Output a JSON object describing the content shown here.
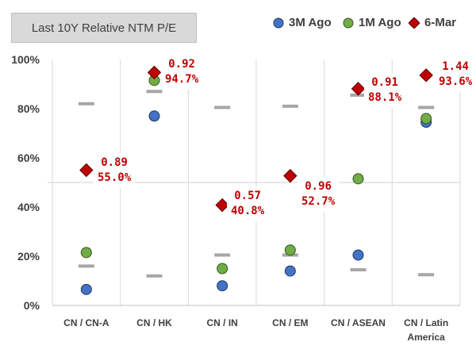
{
  "chart_data": {
    "type": "scatter",
    "title": "Last 10Y Relative NTM P/E",
    "categories": [
      "CN / CN-A",
      "CN / HK",
      "CN / IN",
      "CN / EM",
      "CN / ASEAN",
      "CN / Latin America"
    ],
    "yticks": [
      "0%",
      "20%",
      "40%",
      "60%",
      "80%",
      "100%"
    ],
    "ylim": [
      0,
      100
    ],
    "median_line": 50,
    "grid": false,
    "legend_position": "top-right",
    "series": [
      {
        "name": "3M Ago",
        "marker": "circle",
        "color": "#4472c4",
        "values": [
          6.5,
          77,
          8,
          14,
          20.5,
          74.5
        ]
      },
      {
        "name": "1M Ago",
        "marker": "circle",
        "color": "#70ad47",
        "values": [
          21.5,
          91.5,
          15,
          22.5,
          51.5,
          76
        ]
      },
      {
        "name": "6-Mar",
        "marker": "diamond",
        "color": "#c00000",
        "values": [
          55,
          94.7,
          40.8,
          52.7,
          88.1,
          93.6
        ]
      }
    ],
    "range_marks": {
      "color": "#a6a6a6",
      "upper": [
        82,
        87,
        80.5,
        81,
        85.5,
        80.5
      ],
      "lower": [
        16,
        12,
        20.5,
        20.5,
        14.5,
        12.5
      ]
    },
    "annotations": [
      {
        "line1": "0.89",
        "line2": "55.0%"
      },
      {
        "line1": "0.92",
        "line2": "94.7%"
      },
      {
        "line1": "0.57",
        "line2": "40.8%"
      },
      {
        "line1": "0.96",
        "line2": "52.7%"
      },
      {
        "line1": "0.91",
        "line2": "88.1%"
      },
      {
        "line1": "1.44",
        "line2": "93.6%"
      }
    ]
  }
}
